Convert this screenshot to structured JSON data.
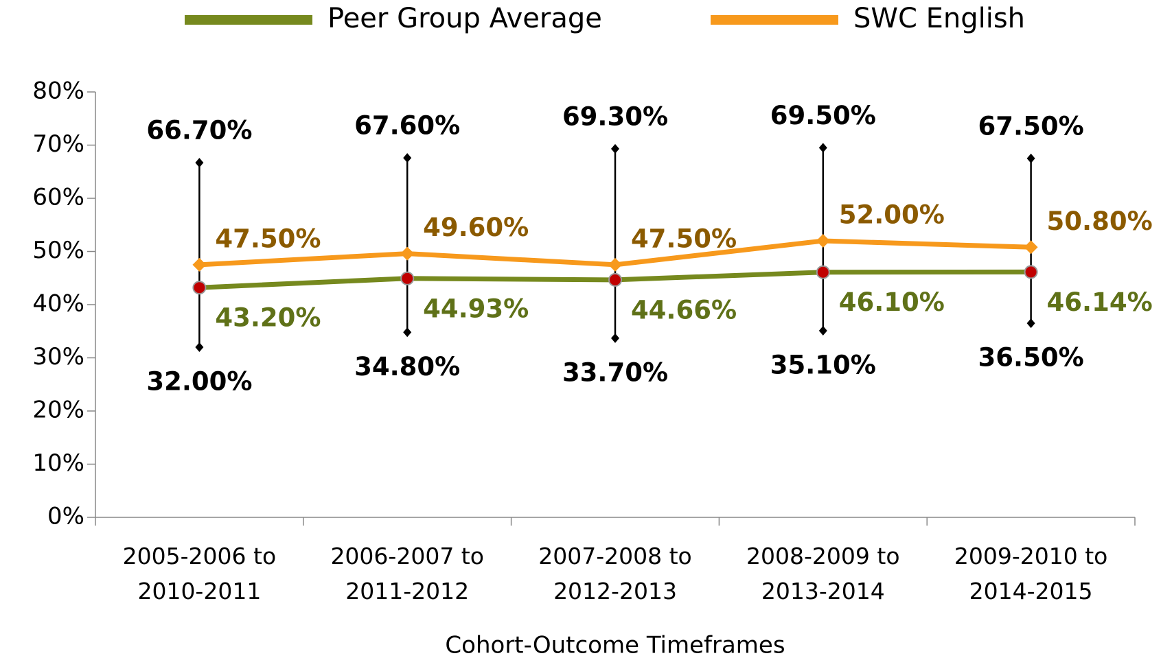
{
  "chart_data": {
    "type": "line",
    "x_label": "Cohort-Outcome Timeframes",
    "categories": [
      "2005-2006 to 2010-2011",
      "2006-2007 to 2011-2012",
      "2007-2008 to 2012-2013",
      "2008-2009 to 2013-2014",
      "2009-2010 to 2014-2015"
    ],
    "series": [
      {
        "name": "Peer Group Average",
        "color": "#76891e",
        "label_color": "#5f7118",
        "marker": "circle",
        "marker_color": "#c00000",
        "values": [
          43.2,
          44.93,
          44.66,
          46.1,
          46.14
        ],
        "value_labels": [
          "43.20%",
          "44.93%",
          "44.66%",
          "46.10%",
          "46.14%"
        ]
      },
      {
        "name": "SWC English",
        "color": "#f7991c",
        "label_color": "#8b5a00",
        "marker": "diamond",
        "marker_color": "#f7991c",
        "values": [
          47.5,
          49.6,
          47.5,
          52.0,
          50.8
        ],
        "value_labels": [
          "47.50%",
          "49.60%",
          "47.50%",
          "52.00%",
          "50.80%"
        ]
      }
    ],
    "error_high": [
      66.7,
      67.6,
      69.3,
      69.5,
      67.5
    ],
    "error_high_labels": [
      "66.70%",
      "67.60%",
      "69.30%",
      "69.50%",
      "67.50%"
    ],
    "error_low": [
      32.0,
      34.8,
      33.7,
      35.1,
      36.5
    ],
    "error_low_labels": [
      "32.00%",
      "34.80%",
      "33.70%",
      "35.10%",
      "36.50%"
    ],
    "ylim": [
      0,
      80
    ],
    "yticks": [
      {
        "value": 0,
        "label": "0%"
      },
      {
        "value": 10,
        "label": "10%"
      },
      {
        "value": 20,
        "label": "20%"
      },
      {
        "value": 30,
        "label": "30%"
      },
      {
        "value": 40,
        "label": "40%"
      },
      {
        "value": 50,
        "label": "50%"
      },
      {
        "value": 60,
        "label": "60%"
      },
      {
        "value": 70,
        "label": "70%"
      },
      {
        "value": 80,
        "label": "80%"
      }
    ],
    "legend": "top",
    "grid": false
  }
}
